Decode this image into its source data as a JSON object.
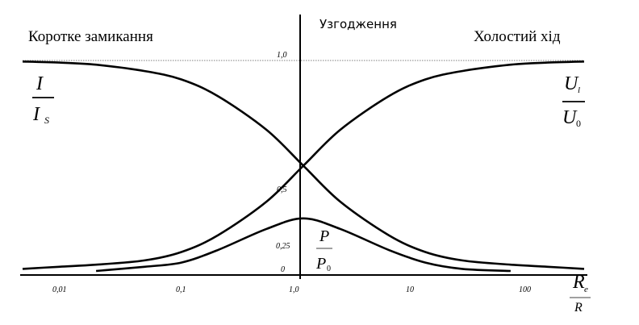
{
  "chart_data": {
    "type": "line",
    "x_scale": "log",
    "xlim": [
      0.005,
      200
    ],
    "ylim": [
      0,
      1.0
    ],
    "grid": false,
    "x_ticks": [
      "0,01",
      "0,1",
      "1,0",
      "10",
      "100"
    ],
    "y_ticks": [
      "1,0",
      "0,5",
      "0,25",
      "0"
    ],
    "regions": {
      "left": "Коротке замикання",
      "center": "Узгодження",
      "right": "Холостий хід"
    },
    "series": [
      {
        "key": "current",
        "label_num": "I",
        "label_den": "I",
        "label_den_sub": "S",
        "x": [
          0.005,
          0.01,
          0.02,
          0.05,
          0.1,
          0.2,
          0.5,
          1.0,
          2,
          5,
          10,
          20,
          50,
          100,
          200
        ],
        "y": [
          0.995,
          0.99,
          0.98,
          0.95,
          0.91,
          0.83,
          0.67,
          0.5,
          0.33,
          0.17,
          0.09,
          0.05,
          0.03,
          0.02,
          0.01
        ]
      },
      {
        "key": "voltage",
        "label_num": "U",
        "label_num_sub": "l",
        "label_den": "U",
        "label_den_sub": "0",
        "x": [
          0.005,
          0.01,
          0.02,
          0.05,
          0.1,
          0.2,
          0.5,
          1.0,
          2,
          5,
          10,
          20,
          50,
          100,
          200
        ],
        "y": [
          0.01,
          0.02,
          0.03,
          0.05,
          0.09,
          0.17,
          0.33,
          0.5,
          0.67,
          0.83,
          0.91,
          0.95,
          0.98,
          0.99,
          0.995
        ]
      },
      {
        "key": "power",
        "label_num": "P",
        "label_den": "P",
        "label_den_sub": "0",
        "x": [
          0.02,
          0.05,
          0.1,
          0.2,
          0.5,
          1.0,
          2,
          5,
          10,
          20,
          50
        ],
        "y": [
          0.0,
          0.02,
          0.04,
          0.1,
          0.2,
          0.25,
          0.2,
          0.1,
          0.04,
          0.01,
          0.0
        ]
      }
    ],
    "x_axis_label": {
      "num": "R",
      "num_sub": "e",
      "den": "R"
    }
  }
}
